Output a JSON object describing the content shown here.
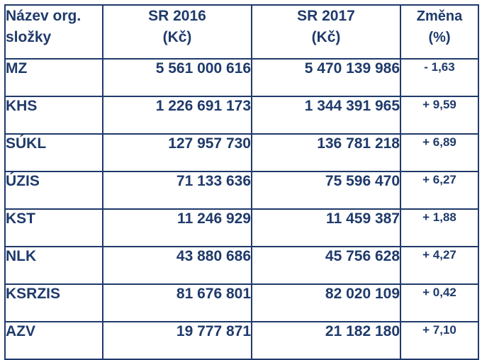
{
  "table": {
    "header": {
      "col1_line1": "Název org.",
      "col1_line2": "složky",
      "col2_line1": "SR 2016",
      "col2_line2": "(Kč)",
      "col3_line1": "SR 2017",
      "col3_line2": "(Kč)",
      "col4_line1": "Změna",
      "col4_line2": "(%)"
    },
    "rows": [
      {
        "name": "MZ",
        "sr2016": "5 561 000 616",
        "sr2017": "5 470 139 986",
        "change": "- 1,63"
      },
      {
        "name": "KHS",
        "sr2016": "1 226 691 173",
        "sr2017": "1 344 391 965",
        "change": "+ 9,59"
      },
      {
        "name": "SÚKL",
        "sr2016": "127 957 730",
        "sr2017": "136 781 218",
        "change": "+ 6,89"
      },
      {
        "name": "ÚZIS",
        "sr2016": "71 133 636",
        "sr2017": "75 596 470",
        "change": "+ 6,27"
      },
      {
        "name": "KST",
        "sr2016": "11 246 929",
        "sr2017": "11 459 387",
        "change": "+ 1,88"
      },
      {
        "name": "NLK",
        "sr2016": "43 880 686",
        "sr2017": "45 756 628",
        "change": "+ 4,27"
      },
      {
        "name": "KSRZIS",
        "sr2016": "81 676 801",
        "sr2017": "82 020 109",
        "change": "+ 0,42"
      },
      {
        "name": "AZV",
        "sr2016": "19 777 871",
        "sr2017": "21 182 180",
        "change": "+ 7,10"
      }
    ]
  },
  "colors": {
    "text": "#1f3a6b",
    "border": "#1f3a6b",
    "background": "#ffffff"
  }
}
